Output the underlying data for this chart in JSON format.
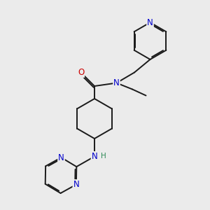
{
  "bg_color": "#ebebeb",
  "atom_colors": {
    "N": "#0000cc",
    "O": "#cc0000",
    "C": "#000000",
    "H": "#2e8b57"
  },
  "bond_color": "#1a1a1a",
  "bond_width": 1.4,
  "font_size_atom": 8.5,
  "font_size_H": 7.5
}
